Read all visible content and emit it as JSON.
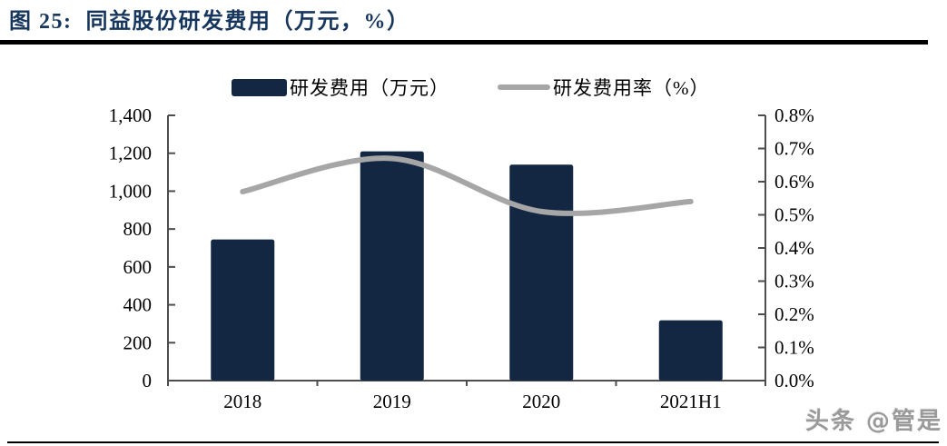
{
  "header": {
    "title": "图 25:  同益股份研发费用（万元，%）"
  },
  "watermark": {
    "text": "头条 @管是"
  },
  "chart_data": {
    "type": "bar",
    "title": "同益股份研发费用（万元，%）",
    "categories": [
      "2018",
      "2019",
      "2020",
      "2021H1"
    ],
    "series": [
      {
        "name": "研发费用（万元）",
        "type": "bar",
        "axis": "left",
        "color": "#132743",
        "values": [
          745,
          1210,
          1140,
          318
        ]
      },
      {
        "name": "研发费用率（%）",
        "type": "line",
        "axis": "right",
        "color": "#a6a6a6",
        "values": [
          0.57,
          0.67,
          0.51,
          0.54
        ]
      }
    ],
    "left_axis": {
      "min": 0,
      "max": 1400,
      "step": 200,
      "tick_labels": [
        "0",
        "200",
        "400",
        "600",
        "800",
        "1,000",
        "1,200",
        "1,400"
      ]
    },
    "right_axis": {
      "min": 0,
      "max": 0.8,
      "step": 0.1,
      "tick_labels": [
        "0.0%",
        "0.1%",
        "0.2%",
        "0.3%",
        "0.4%",
        "0.5%",
        "0.6%",
        "0.7%",
        "0.8%"
      ]
    },
    "legend_position": "top",
    "grid": false
  }
}
